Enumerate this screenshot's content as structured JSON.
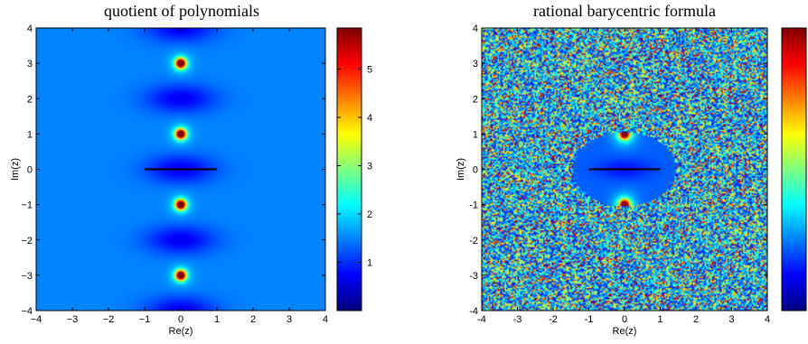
{
  "chart_data": [
    {
      "type": "heatmap",
      "title": "quotient of polynomials",
      "xlabel": "Re(z)",
      "ylabel": "Im(z)",
      "xlim": [
        -4,
        4
      ],
      "ylim": [
        -4,
        4
      ],
      "xticks": [
        "−4",
        "−3",
        "−2",
        "−1",
        "0",
        "1",
        "2",
        "3",
        "4"
      ],
      "yticks": [
        "−4",
        "−3",
        "−2",
        "−1",
        "0",
        "1",
        "2",
        "3",
        "4"
      ],
      "poles": [
        {
          "re": 0,
          "im": 3
        },
        {
          "re": 0,
          "im": 1
        },
        {
          "re": 0,
          "im": -1
        },
        {
          "re": 0,
          "im": -3
        }
      ],
      "dark_bands_im": [
        4,
        2,
        0,
        -2,
        -4
      ],
      "segment": {
        "from": [
          -1,
          0
        ],
        "to": [
          1,
          0
        ]
      },
      "colorbar": {
        "min": 0,
        "max": 5.85,
        "ticks": [
          1,
          2,
          3,
          4,
          5
        ],
        "tick_labels": [
          "1",
          "2",
          "3",
          "4",
          "5"
        ]
      },
      "colormap": "jet",
      "background_color": "#0a3cff"
    },
    {
      "type": "heatmap",
      "title": "rational barycentric formula",
      "xlabel": "Re(z)",
      "ylabel": "Im(z)",
      "xlim": [
        -4,
        4
      ],
      "ylim": [
        -4,
        4
      ],
      "xticks": [
        "-4",
        "-3",
        "-2",
        "-1",
        "0",
        "1",
        "2",
        "3",
        "4"
      ],
      "yticks": [
        "-4",
        "-3",
        "-2",
        "-1",
        "0",
        "1",
        "2",
        "3",
        "4"
      ],
      "poles": [
        {
          "re": 0,
          "im": 1
        },
        {
          "re": 0,
          "im": -1
        }
      ],
      "smooth_region": {
        "center": [
          0,
          0
        ],
        "semi_axes": [
          1.45,
          1.05
        ]
      },
      "segment": {
        "from": [
          -1,
          0
        ],
        "to": [
          1,
          0
        ]
      },
      "noise_outside": true,
      "colorbar": {
        "ticks": [],
        "tick_labels": []
      },
      "colormap": "jet"
    }
  ]
}
